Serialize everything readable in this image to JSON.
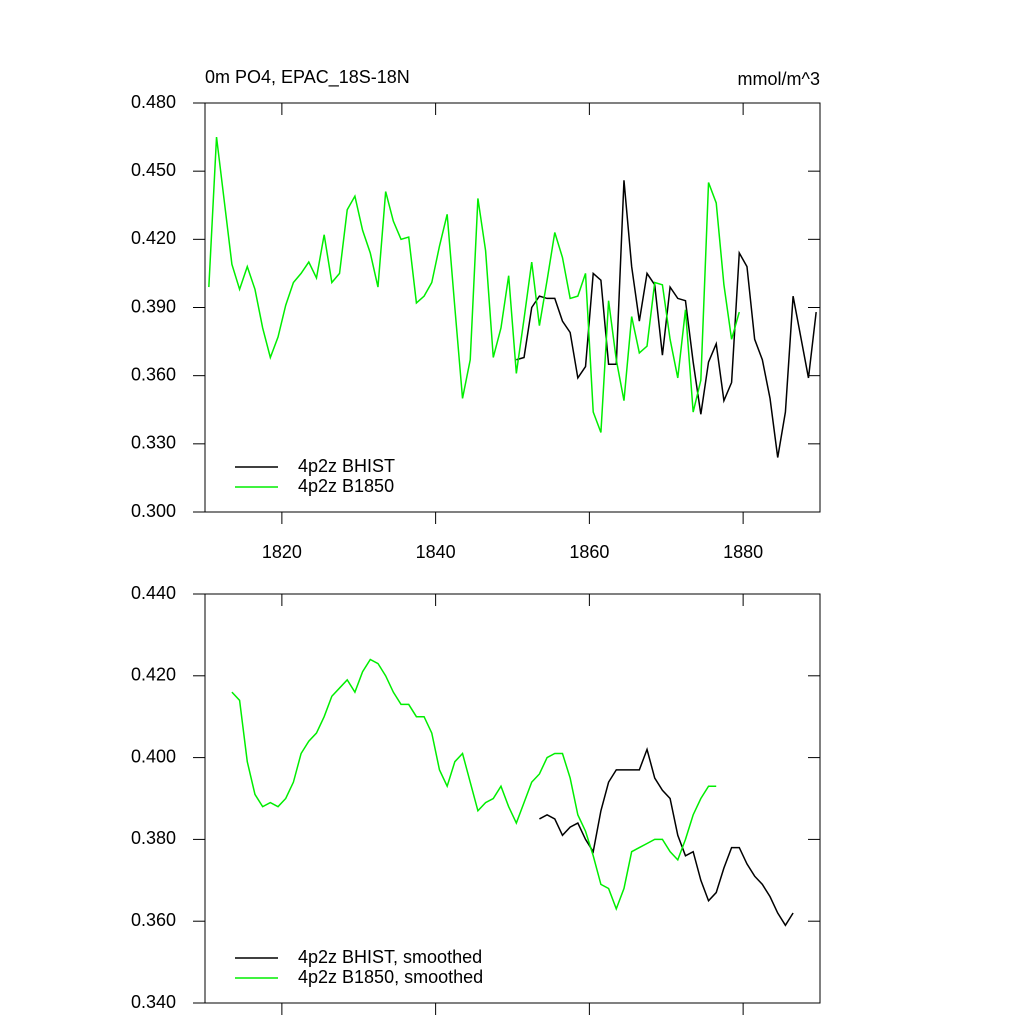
{
  "chart_data": [
    {
      "type": "line",
      "title": "0m PO4, EPAC_18S-18N",
      "units": "mmol/m^3",
      "xlim": [
        1810,
        1890
      ],
      "xticks": [
        1820,
        1840,
        1860,
        1880
      ],
      "ylim": [
        0.3,
        0.48
      ],
      "yticks": [
        {
          "value": 0.3,
          "label": "0.300"
        },
        {
          "value": 0.33,
          "label": "0.330"
        },
        {
          "value": 0.36,
          "label": "0.360"
        },
        {
          "value": 0.39,
          "label": "0.390"
        },
        {
          "value": 0.42,
          "label": "0.420"
        },
        {
          "value": 0.45,
          "label": "0.450"
        },
        {
          "value": 0.48,
          "label": "0.480"
        }
      ],
      "legend": "lower left",
      "series": [
        {
          "name": "4p2z BHIST",
          "color": "#000000",
          "x": [
            1850.5,
            1851.5,
            1852.5,
            1853.5,
            1854.5,
            1855.5,
            1856.5,
            1857.5,
            1858.5,
            1859.5,
            1860.5,
            1861.5,
            1862.5,
            1863.5,
            1864.5,
            1865.5,
            1866.5,
            1867.5,
            1868.5,
            1869.5,
            1870.5,
            1871.5,
            1872.5,
            1873.5,
            1874.5,
            1875.5,
            1876.5,
            1877.5,
            1878.5,
            1879.5,
            1880.5,
            1881.5,
            1882.5,
            1883.5,
            1884.5,
            1885.5,
            1886.5,
            1887.5,
            1888.5,
            1889.5
          ],
          "values": [
            0.367,
            0.368,
            0.39,
            0.395,
            0.394,
            0.394,
            0.384,
            0.379,
            0.359,
            0.364,
            0.405,
            0.402,
            0.365,
            0.365,
            0.446,
            0.408,
            0.384,
            0.405,
            0.4,
            0.369,
            0.399,
            0.394,
            0.393,
            0.366,
            0.343,
            0.366,
            0.374,
            0.349,
            0.357,
            0.414,
            0.408,
            0.376,
            0.367,
            0.35,
            0.324,
            0.344,
            0.395,
            0.377,
            0.359,
            0.388
          ]
        },
        {
          "name": "4p2z B1850",
          "color": "#00ee00",
          "x": [
            1810.5,
            1811.5,
            1812.5,
            1813.5,
            1814.5,
            1815.5,
            1816.5,
            1817.5,
            1818.5,
            1819.5,
            1820.5,
            1821.5,
            1822.5,
            1823.5,
            1824.5,
            1825.5,
            1826.5,
            1827.5,
            1828.5,
            1829.5,
            1830.5,
            1831.5,
            1832.5,
            1833.5,
            1834.5,
            1835.5,
            1836.5,
            1837.5,
            1838.5,
            1839.5,
            1840.5,
            1841.5,
            1842.5,
            1843.5,
            1844.5,
            1845.5,
            1846.5,
            1847.5,
            1848.5,
            1849.5,
            1850.5,
            1851.5,
            1852.5,
            1853.5,
            1854.5,
            1855.5,
            1856.5,
            1857.5,
            1858.5,
            1859.5,
            1860.5,
            1861.5,
            1862.5,
            1863.5,
            1864.5,
            1865.5,
            1866.5,
            1867.5,
            1868.5,
            1869.5,
            1870.5,
            1871.5,
            1872.5,
            1873.5,
            1874.5,
            1875.5,
            1876.5,
            1877.5,
            1878.5,
            1879.5
          ],
          "values": [
            0.399,
            0.465,
            0.437,
            0.409,
            0.398,
            0.408,
            0.398,
            0.381,
            0.368,
            0.377,
            0.391,
            0.401,
            0.405,
            0.41,
            0.403,
            0.422,
            0.401,
            0.405,
            0.433,
            0.439,
            0.424,
            0.414,
            0.399,
            0.441,
            0.428,
            0.42,
            0.421,
            0.392,
            0.395,
            0.401,
            0.417,
            0.431,
            0.39,
            0.35,
            0.367,
            0.438,
            0.415,
            0.368,
            0.381,
            0.404,
            0.361,
            0.385,
            0.41,
            0.382,
            0.402,
            0.423,
            0.412,
            0.394,
            0.395,
            0.405,
            0.344,
            0.335,
            0.393,
            0.367,
            0.349,
            0.386,
            0.37,
            0.373,
            0.401,
            0.4,
            0.376,
            0.359,
            0.389,
            0.344,
            0.358,
            0.445,
            0.436,
            0.4,
            0.376,
            0.388
          ]
        }
      ]
    },
    {
      "type": "line",
      "xlim": [
        1810,
        1890
      ],
      "xticks": [
        1820,
        1840,
        1860,
        1880
      ],
      "xtick_labels": false,
      "ylim": [
        0.34,
        0.44
      ],
      "yticks": [
        {
          "value": 0.34,
          "label": "0.340"
        },
        {
          "value": 0.36,
          "label": "0.360"
        },
        {
          "value": 0.38,
          "label": "0.380"
        },
        {
          "value": 0.4,
          "label": "0.400"
        },
        {
          "value": 0.42,
          "label": "0.420"
        },
        {
          "value": 0.44,
          "label": "0.440"
        }
      ],
      "legend": "lower left",
      "series": [
        {
          "name": "4p2z BHIST, smoothed",
          "color": "#000000",
          "x": [
            1853.5,
            1854.5,
            1855.5,
            1856.5,
            1857.5,
            1858.5,
            1859.5,
            1860.5,
            1861.5,
            1862.5,
            1863.5,
            1864.5,
            1865.5,
            1866.5,
            1867.5,
            1868.5,
            1869.5,
            1870.5,
            1871.5,
            1872.5,
            1873.5,
            1874.5,
            1875.5,
            1876.5,
            1877.5,
            1878.5,
            1879.5,
            1880.5,
            1881.5,
            1882.5,
            1883.5,
            1884.5,
            1885.5,
            1886.5
          ],
          "values": [
            0.385,
            0.386,
            0.385,
            0.381,
            0.383,
            0.384,
            0.38,
            0.377,
            0.387,
            0.394,
            0.397,
            0.397,
            0.397,
            0.397,
            0.402,
            0.395,
            0.392,
            0.39,
            0.381,
            0.376,
            0.377,
            0.37,
            0.365,
            0.367,
            0.373,
            0.378,
            0.378,
            0.374,
            0.371,
            0.369,
            0.366,
            0.362,
            0.359,
            0.362
          ]
        },
        {
          "name": "4p2z B1850, smoothed",
          "color": "#00ee00",
          "x": [
            1813.5,
            1814.5,
            1815.5,
            1816.5,
            1817.5,
            1818.5,
            1819.5,
            1820.5,
            1821.5,
            1822.5,
            1823.5,
            1824.5,
            1825.5,
            1826.5,
            1827.5,
            1828.5,
            1829.5,
            1830.5,
            1831.5,
            1832.5,
            1833.5,
            1834.5,
            1835.5,
            1836.5,
            1837.5,
            1838.5,
            1839.5,
            1840.5,
            1841.5,
            1842.5,
            1843.5,
            1844.5,
            1845.5,
            1846.5,
            1847.5,
            1848.5,
            1849.5,
            1850.5,
            1851.5,
            1852.5,
            1853.5,
            1854.5,
            1855.5,
            1856.5,
            1857.5,
            1858.5,
            1859.5,
            1860.5,
            1861.5,
            1862.5,
            1863.5,
            1864.5,
            1865.5,
            1866.5,
            1867.5,
            1868.5,
            1869.5,
            1870.5,
            1871.5,
            1872.5,
            1873.5,
            1874.5,
            1875.5,
            1876.5
          ],
          "values": [
            0.416,
            0.414,
            0.399,
            0.391,
            0.388,
            0.389,
            0.388,
            0.39,
            0.394,
            0.401,
            0.404,
            0.406,
            0.41,
            0.415,
            0.417,
            0.419,
            0.416,
            0.421,
            0.424,
            0.423,
            0.42,
            0.416,
            0.413,
            0.413,
            0.41,
            0.41,
            0.406,
            0.397,
            0.393,
            0.399,
            0.401,
            0.394,
            0.387,
            0.389,
            0.39,
            0.393,
            0.388,
            0.384,
            0.389,
            0.394,
            0.396,
            0.4,
            0.401,
            0.401,
            0.395,
            0.386,
            0.382,
            0.376,
            0.369,
            0.368,
            0.363,
            0.368,
            0.377,
            0.378,
            0.379,
            0.38,
            0.38,
            0.377,
            0.375,
            0.38,
            0.386,
            0.39,
            0.393,
            0.393
          ]
        }
      ]
    }
  ]
}
